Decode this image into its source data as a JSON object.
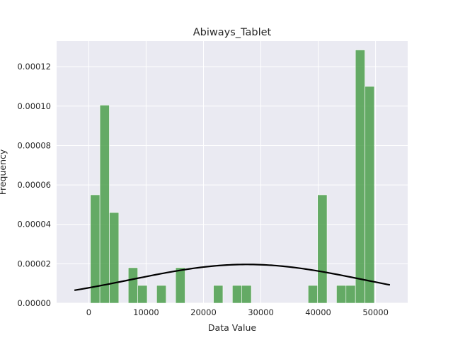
{
  "chart_data": {
    "type": "bar",
    "title": "Abiways_Tablet",
    "xlabel": "Data Value",
    "ylabel": "Frequency",
    "xlim": [
      -5600,
      55600
    ],
    "ylim": [
      0,
      0.000133
    ],
    "xticks": [
      0,
      10000,
      20000,
      30000,
      40000,
      50000
    ],
    "xtick_labels": [
      "0",
      "10000",
      "20000",
      "30000",
      "40000",
      "50000"
    ],
    "yticks": [
      0,
      2e-05,
      4e-05,
      6e-05,
      8e-05,
      0.0001,
      0.00012
    ],
    "ytick_labels": [
      "0.00000",
      "0.00002",
      "0.00004",
      "0.00006",
      "0.00008",
      "0.00010",
      "0.00012"
    ],
    "grid": true,
    "bar_color": "#4c9f4c",
    "curve_color": "#000000",
    "background": "#eaeaf2",
    "bins": [
      {
        "x0": 290,
        "x1": 1940,
        "density": 5.5e-05
      },
      {
        "x0": 1940,
        "x1": 3590,
        "density": 0.0001005
      },
      {
        "x0": 3590,
        "x1": 5240,
        "density": 4.6e-05
      },
      {
        "x0": 6890,
        "x1": 8540,
        "density": 1.8e-05
      },
      {
        "x0": 8540,
        "x1": 10190,
        "density": 9e-06
      },
      {
        "x0": 11840,
        "x1": 13490,
        "density": 9e-06
      },
      {
        "x0": 15140,
        "x1": 16790,
        "density": 1.8e-05
      },
      {
        "x0": 21740,
        "x1": 23390,
        "density": 9e-06
      },
      {
        "x0": 25040,
        "x1": 26690,
        "density": 9e-06
      },
      {
        "x0": 26690,
        "x1": 28340,
        "density": 9e-06
      },
      {
        "x0": 38240,
        "x1": 39890,
        "density": 9e-06
      },
      {
        "x0": 39890,
        "x1": 41540,
        "density": 5.5e-05
      },
      {
        "x0": 43190,
        "x1": 44840,
        "density": 9e-06
      },
      {
        "x0": 44840,
        "x1": 46490,
        "density": 9e-06
      },
      {
        "x0": 46490,
        "x1": 48140,
        "density": 0.0001285
      },
      {
        "x0": 48140,
        "x1": 49790,
        "density": 0.00011
      }
    ],
    "curve": {
      "type": "normal-pdf",
      "mean": 27600,
      "std": 20300,
      "x_range": [
        -2500,
        52500
      ]
    }
  }
}
